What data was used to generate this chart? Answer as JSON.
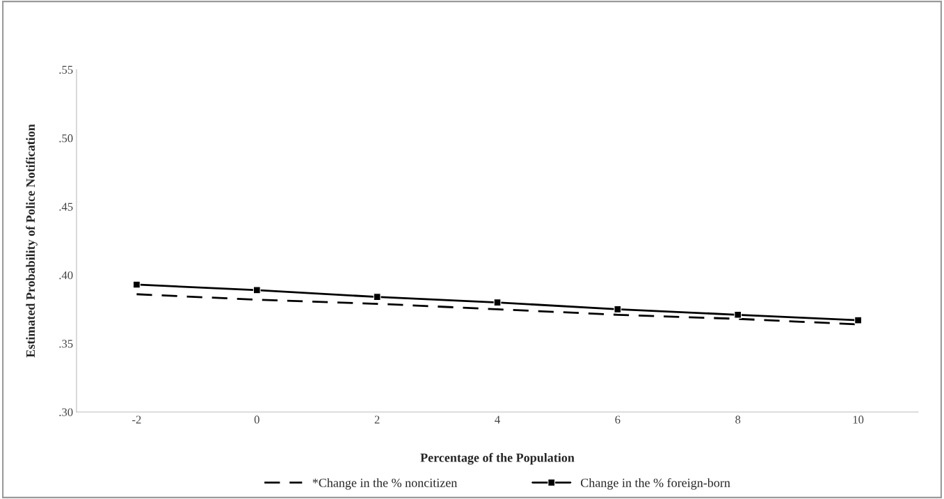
{
  "chart_data": {
    "type": "line",
    "xlabel": "Percentage of the Population",
    "ylabel": "Estimated Probability of Police Notification",
    "categories": [
      "-2",
      "0",
      "2",
      "4",
      "6",
      "8",
      "10"
    ],
    "series": [
      {
        "name": "*Change in the % noncitizen",
        "color": "#000000",
        "line_style": "dashed",
        "marker": "none",
        "values": [
          0.386,
          0.382,
          0.379,
          0.375,
          0.371,
          0.368,
          0.364
        ]
      },
      {
        "name": "Change in the % foreign-born",
        "color": "#000000",
        "line_style": "solid",
        "marker": "square",
        "values": [
          0.393,
          0.389,
          0.384,
          0.38,
          0.375,
          0.371,
          0.367
        ]
      }
    ],
    "ylim": [
      0.3,
      0.55
    ],
    "yticks": [
      {
        "value": 0.3,
        "label": ".30"
      },
      {
        "value": 0.35,
        "label": ".35"
      },
      {
        "value": 0.4,
        "label": ".40"
      },
      {
        "value": 0.45,
        "label": ".45"
      },
      {
        "value": 0.5,
        "label": ".50"
      },
      {
        "value": 0.55,
        "label": ".55"
      }
    ],
    "grid": false,
    "legend": "bottom"
  }
}
